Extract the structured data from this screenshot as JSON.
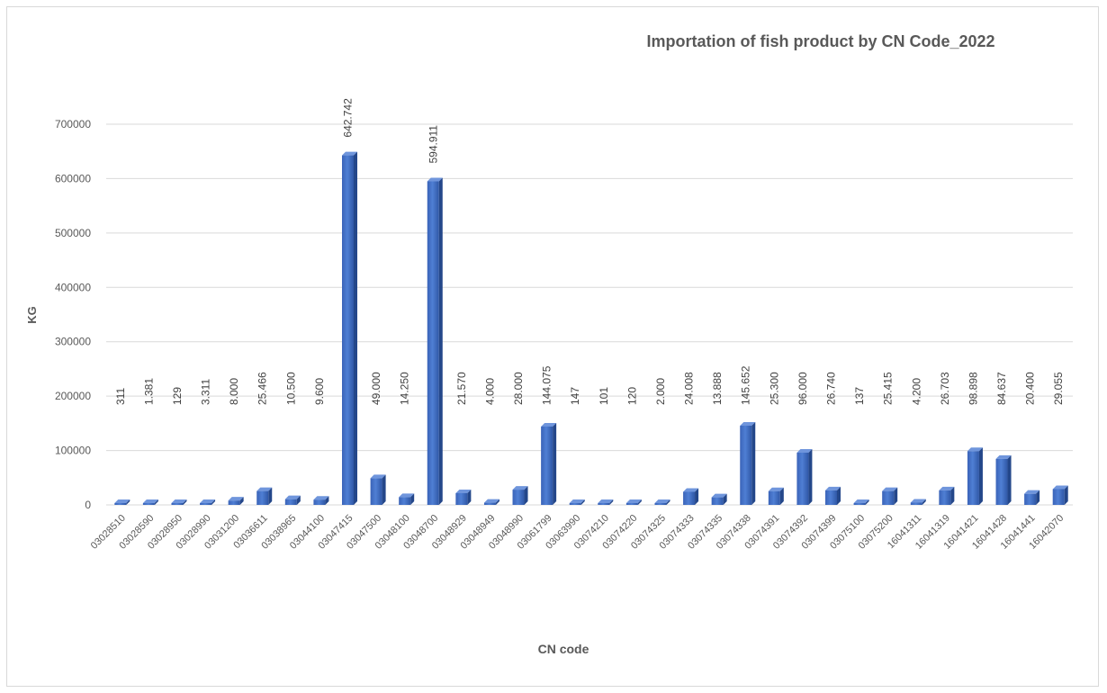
{
  "chart_data": {
    "type": "bar",
    "title": "Importation of fish product by CN Code_2022",
    "xlabel": "CN code",
    "ylabel": "KG",
    "ylim": [
      0,
      700000
    ],
    "yticks": [
      0,
      100000,
      200000,
      300000,
      400000,
      500000,
      600000,
      700000
    ],
    "ytick_labels": [
      "0",
      "100000",
      "200000",
      "300000",
      "400000",
      "500000",
      "600000",
      "700000"
    ],
    "grid": true,
    "legend": "none",
    "bar_color": "#4472c4",
    "categories": [
      "03028510",
      "03028590",
      "03028950",
      "03028990",
      "03031200",
      "03036611",
      "03038965",
      "03044100",
      "03047415",
      "03047500",
      "03048100",
      "03048700",
      "03048929",
      "03048949",
      "03048990",
      "03061799",
      "03063990",
      "03074210",
      "03074220",
      "03074325",
      "03074333",
      "03074335",
      "03074338",
      "03074391",
      "03074392",
      "03074399",
      "03075100",
      "03075200",
      "16041311",
      "16041319",
      "16041421",
      "16041428",
      "16041441",
      "16042070"
    ],
    "values": [
      311,
      1381,
      129,
      3311,
      8000,
      25466,
      10500,
      9600,
      642742,
      49000,
      14250,
      594911,
      21570,
      4000,
      28000,
      144075,
      147,
      101,
      120,
      2000,
      24008,
      13888,
      145652,
      25300,
      96000,
      26740,
      137,
      25415,
      4200,
      26703,
      98898,
      84637,
      20400,
      29055
    ],
    "data_labels": [
      "311",
      "1.381",
      "129",
      "3.311",
      "8.000",
      "25.466",
      "10.500",
      "9.600",
      "642.742",
      "49.000",
      "14.250",
      "594.911",
      "21.570",
      "4.000",
      "28.000",
      "144.075",
      "147",
      "101",
      "120",
      "2.000",
      "24.008",
      "13.888",
      "145.652",
      "25.300",
      "96.000",
      "26.740",
      "137",
      "25.415",
      "4.200",
      "26.703",
      "98.898",
      "84.637",
      "20.400",
      "29.055"
    ]
  }
}
